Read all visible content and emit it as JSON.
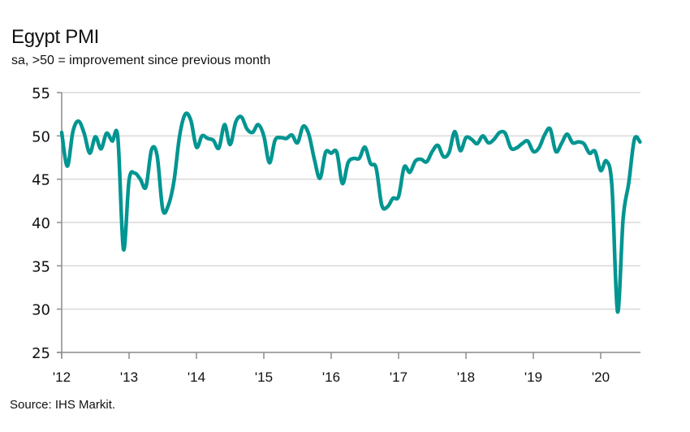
{
  "chart_data": {
    "type": "line",
    "title": "Egypt PMI",
    "subtitle": "sa, >50 = improvement since previous month",
    "source": "Source: IHS Markit.",
    "xlabel": "",
    "ylabel": "",
    "ylim": [
      25,
      55
    ],
    "yticks": [
      55,
      50,
      45,
      40,
      35,
      30,
      25
    ],
    "xticks": [
      "'12",
      "'13",
      "'14",
      "'15",
      "'16",
      "'17",
      "'18",
      "'19",
      "'20"
    ],
    "x_start": "2012-01",
    "x_end": "2020-08",
    "grid": "horizontal",
    "line_color": "#009591",
    "series": [
      {
        "name": "Egypt PMI",
        "frequency": "monthly",
        "values": [
          50.4,
          46.5,
          50.5,
          51.7,
          50.3,
          48.0,
          49.9,
          48.5,
          50.3,
          49.4,
          49.8,
          36.9,
          44.9,
          45.7,
          45.0,
          44.1,
          48.4,
          47.7,
          41.5,
          42.0,
          44.8,
          50.0,
          52.5,
          51.8,
          48.7,
          50.0,
          49.7,
          49.5,
          48.6,
          51.3,
          49.0,
          51.6,
          52.2,
          50.8,
          50.4,
          51.3,
          50.0,
          46.9,
          49.5,
          49.8,
          49.7,
          50.1,
          49.2,
          51.1,
          50.2,
          47.3,
          45.1,
          48.1,
          48.0,
          48.1,
          44.5,
          46.9,
          47.4,
          47.4,
          48.7,
          46.8,
          46.3,
          42.0,
          41.8,
          42.8,
          43.0,
          46.4,
          45.8,
          47.1,
          47.3,
          47.0,
          48.2,
          48.9,
          47.6,
          48.1,
          50.5,
          48.3,
          49.8,
          49.6,
          49.1,
          50.0,
          49.2,
          49.6,
          50.4,
          50.3,
          48.6,
          48.6,
          49.1,
          49.4,
          48.2,
          48.6,
          50.1,
          50.8,
          48.2,
          49.1,
          50.2,
          49.2,
          49.3,
          49.1,
          48.0,
          48.2,
          46.0,
          47.1,
          44.2,
          29.7,
          40.5,
          44.6,
          49.6,
          49.3
        ]
      }
    ]
  }
}
